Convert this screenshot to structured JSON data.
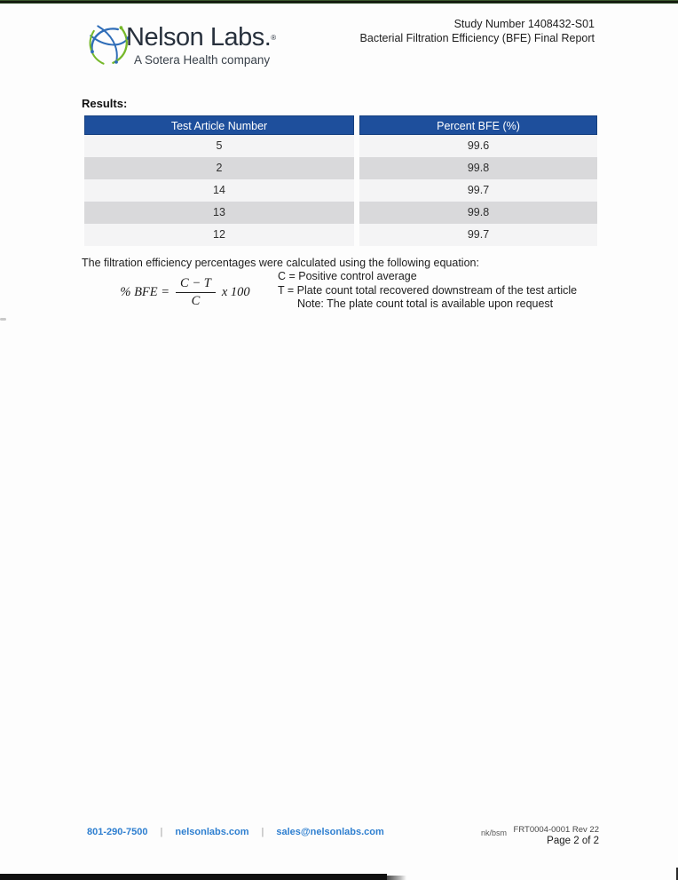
{
  "header": {
    "logo": {
      "name": "Nelson Labs.",
      "reg": "®",
      "tagline": "A Sotera Health company"
    },
    "study_number": "Study Number 1408432-S01",
    "report_title": "Bacterial Filtration Efficiency (BFE) Final Report"
  },
  "results": {
    "label": "Results:",
    "table": {
      "columns": [
        "Test Article Number",
        "Percent BFE (%)"
      ],
      "rows": [
        {
          "article": "5",
          "bfe": "99.6"
        },
        {
          "article": "2",
          "bfe": "99.8"
        },
        {
          "article": "14",
          "bfe": "99.7"
        },
        {
          "article": "13",
          "bfe": "99.8"
        },
        {
          "article": "12",
          "bfe": "99.7"
        }
      ]
    }
  },
  "equation_section": {
    "intro": "The filtration efficiency percentages were calculated using the following equation:",
    "formula": {
      "lhs": "% BFE =",
      "numerator": "C − T",
      "denominator": "C",
      "multiplier": "x 100"
    },
    "definitions": [
      "C = Positive control average",
      "T = Plate count total recovered downstream of the test article"
    ],
    "note": "Note: The plate count total is available upon request"
  },
  "footer": {
    "phone": "801-290-7500",
    "separator": "|",
    "website": "nelsonlabs.com",
    "email": "sales@nelsonlabs.com",
    "initials": "nk/bsm",
    "form_number": "FRT0004-0001 Rev 22",
    "page_label": "Page 2 of 2"
  },
  "colors": {
    "table_header_bg": "#1e4f9c",
    "row_bg": "#f4f4f5",
    "row_alt_bg": "#d9d9db",
    "footer_link_blue": "#2e7fd0",
    "logo_blue": "#2f6db8",
    "logo_green": "#76b82a"
  }
}
